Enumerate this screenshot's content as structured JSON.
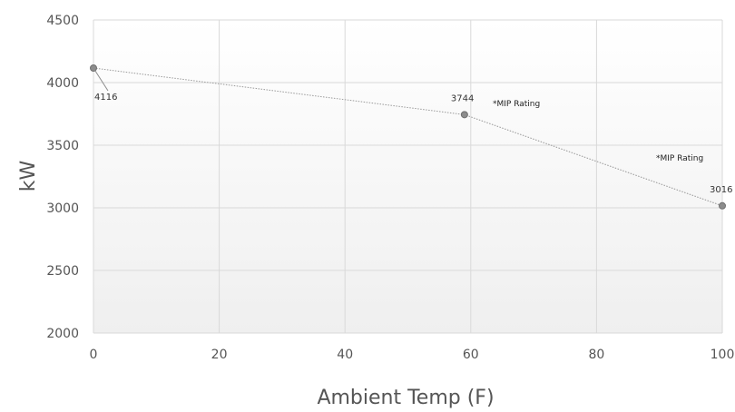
{
  "chart_data": {
    "type": "line",
    "title": "",
    "xlabel": "Ambient Temp (F)",
    "ylabel": "kW",
    "xlim": [
      0,
      100
    ],
    "ylim": [
      2000,
      4500
    ],
    "x_ticks": [
      0,
      20,
      40,
      60,
      80,
      100
    ],
    "y_ticks": [
      2000,
      2500,
      3000,
      3500,
      4000,
      4500
    ],
    "grid": true,
    "series": [
      {
        "x": [
          0,
          59,
          100
        ],
        "y": [
          4116,
          3744,
          3016
        ],
        "labels": [
          "4116",
          "3744",
          "3016"
        ]
      }
    ],
    "annotations": [
      "*MIP Rating",
      "*MIP Rating"
    ],
    "colors": {
      "line": "#9a9a9a",
      "marker": "#8c8c8c",
      "grid": "#d9d9d9"
    }
  }
}
